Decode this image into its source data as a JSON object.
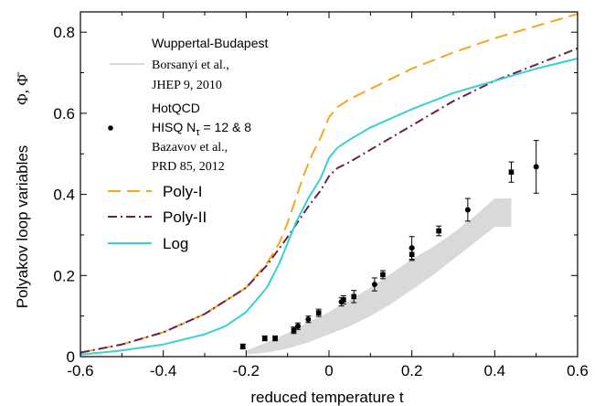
{
  "chart_data": {
    "type": "line",
    "xlabel": "reduced temperature   t",
    "ylabel": "Polyakov loop variables",
    "ylabel_symbols": "Φ, Φ̄",
    "xlim": [
      -0.6,
      0.6
    ],
    "ylim": [
      0,
      0.85
    ],
    "x_ticks": [
      -0.6,
      -0.4,
      -0.2,
      0,
      0.2,
      0.4,
      0.6
    ],
    "x_tick_labels": [
      "-0.6",
      "-0.4",
      "-0.2",
      "0",
      "0.2",
      "0.4",
      "0.6"
    ],
    "y_ticks": [
      0,
      0.2,
      0.4,
      0.6,
      0.8
    ],
    "y_tick_labels": [
      "0",
      "0.2",
      "0.4",
      "0.6",
      "0.8"
    ],
    "grid": false,
    "legend_position": "top-left",
    "legend_texts": {
      "wb_title": "Wuppertal-Budapest",
      "wb_ref1": "Borsanyi et al.,",
      "wb_ref2": "JHEP 9, 2010",
      "hq_title": "HotQCD",
      "hq_sub_prefix": "HISQ N",
      "hq_sub_index": "τ",
      "hq_sub_suffix": " = 12 & 8",
      "hq_ref1": "Bazavov et al.,",
      "hq_ref2": "PRD 85, 2012"
    },
    "series": [
      {
        "name": "Poly-I",
        "color": "#f5a623",
        "dash": "dashed",
        "x": [
          -0.6,
          -0.5,
          -0.4,
          -0.3,
          -0.2,
          -0.15,
          -0.12,
          -0.1,
          -0.08,
          -0.06,
          -0.04,
          -0.02,
          0.0,
          0.02,
          0.05,
          0.1,
          0.2,
          0.3,
          0.4,
          0.5,
          0.6
        ],
        "y": [
          0.01,
          0.03,
          0.06,
          0.105,
          0.17,
          0.23,
          0.28,
          0.33,
          0.39,
          0.45,
          0.5,
          0.54,
          0.59,
          0.615,
          0.635,
          0.66,
          0.71,
          0.75,
          0.785,
          0.815,
          0.845
        ]
      },
      {
        "name": "Poly-II",
        "color": "#6b1f4e",
        "dash": "dashdot",
        "x": [
          -0.6,
          -0.5,
          -0.4,
          -0.3,
          -0.2,
          -0.15,
          -0.1,
          -0.05,
          -0.02,
          0.0,
          0.02,
          0.05,
          0.1,
          0.2,
          0.3,
          0.4,
          0.5,
          0.6
        ],
        "y": [
          0.01,
          0.03,
          0.06,
          0.105,
          0.17,
          0.225,
          0.295,
          0.37,
          0.41,
          0.445,
          0.465,
          0.48,
          0.51,
          0.57,
          0.63,
          0.68,
          0.72,
          0.76
        ]
      },
      {
        "name": "Log",
        "color": "#3ccfcf",
        "dash": "solid",
        "x": [
          -0.6,
          -0.5,
          -0.4,
          -0.3,
          -0.25,
          -0.2,
          -0.15,
          -0.12,
          -0.1,
          -0.08,
          -0.05,
          -0.02,
          0.0,
          0.02,
          0.05,
          0.1,
          0.2,
          0.3,
          0.4,
          0.5,
          0.6
        ],
        "y": [
          0.005,
          0.015,
          0.03,
          0.055,
          0.075,
          0.11,
          0.17,
          0.23,
          0.28,
          0.33,
          0.39,
          0.44,
          0.49,
          0.515,
          0.535,
          0.565,
          0.61,
          0.65,
          0.68,
          0.71,
          0.735
        ]
      }
    ],
    "band": {
      "name": "Wuppertal-Budapest",
      "color": "#d9d9d9",
      "x": [
        -0.2,
        -0.15,
        -0.1,
        -0.05,
        0.0,
        0.05,
        0.1,
        0.15,
        0.2,
        0.25,
        0.3,
        0.35,
        0.4,
        0.44
      ],
      "upper": [
        0.015,
        0.035,
        0.058,
        0.085,
        0.11,
        0.14,
        0.17,
        0.205,
        0.24,
        0.27,
        0.305,
        0.345,
        0.39,
        0.39
      ],
      "lower": [
        0.005,
        0.01,
        0.02,
        0.035,
        0.055,
        0.075,
        0.1,
        0.13,
        0.165,
        0.2,
        0.24,
        0.28,
        0.32,
        0.32
      ]
    },
    "points": [
      {
        "x": -0.208,
        "y": 0.025,
        "err": 0.006,
        "marker": "square"
      },
      {
        "x": -0.155,
        "y": 0.045,
        "err": 0.006,
        "marker": "square"
      },
      {
        "x": -0.13,
        "y": 0.045,
        "err": 0.006,
        "marker": "square"
      },
      {
        "x": -0.085,
        "y": 0.065,
        "err": 0.008,
        "marker": "square"
      },
      {
        "x": -0.075,
        "y": 0.075,
        "err": 0.008,
        "marker": "circle"
      },
      {
        "x": -0.05,
        "y": 0.092,
        "err": 0.008,
        "marker": "circle"
      },
      {
        "x": -0.025,
        "y": 0.108,
        "err": 0.009,
        "marker": "square"
      },
      {
        "x": 0.03,
        "y": 0.135,
        "err": 0.01,
        "marker": "circle"
      },
      {
        "x": 0.035,
        "y": 0.14,
        "err": 0.01,
        "marker": "square"
      },
      {
        "x": 0.06,
        "y": 0.148,
        "err": 0.015,
        "marker": "square"
      },
      {
        "x": 0.11,
        "y": 0.178,
        "err": 0.016,
        "marker": "circle"
      },
      {
        "x": 0.13,
        "y": 0.202,
        "err": 0.01,
        "marker": "square"
      },
      {
        "x": 0.2,
        "y": 0.268,
        "err": 0.028,
        "marker": "circle"
      },
      {
        "x": 0.2,
        "y": 0.252,
        "err": 0.015,
        "marker": "square"
      },
      {
        "x": 0.265,
        "y": 0.31,
        "err": 0.012,
        "marker": "square"
      },
      {
        "x": 0.335,
        "y": 0.362,
        "err": 0.028,
        "marker": "circle"
      },
      {
        "x": 0.44,
        "y": 0.455,
        "err": 0.025,
        "marker": "square"
      },
      {
        "x": 0.5,
        "y": 0.468,
        "err": 0.065,
        "marker": "circle"
      }
    ]
  }
}
